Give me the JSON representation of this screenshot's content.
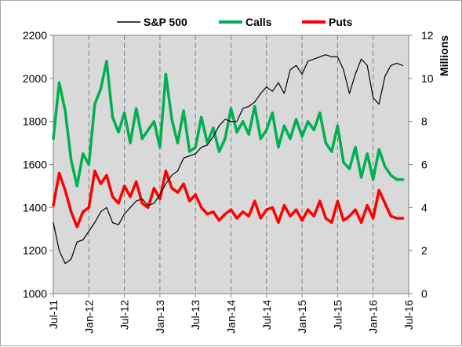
{
  "chart_data": {
    "type": "line",
    "title": "",
    "x_axis": {
      "ticks": [
        "Jul-11",
        "Jan-12",
        "Jul-12",
        "Jan-13",
        "Jul-13",
        "Jan-14",
        "Jul-14",
        "Jan-15",
        "Jul-15",
        "Jan-16",
        "Jul-16"
      ],
      "range": [
        "2011-07",
        "2016-07"
      ]
    },
    "y_left": {
      "label": "",
      "ylim": [
        1000,
        2200
      ],
      "ticks": [
        "1000",
        "1200",
        "1400",
        "1600",
        "1800",
        "2000",
        "2200"
      ]
    },
    "y_right": {
      "label": "Millions",
      "ylim": [
        0,
        12
      ],
      "ticks": [
        "0",
        "2",
        "4",
        "6",
        "8",
        "10",
        "12"
      ]
    },
    "legend": {
      "placement": "top",
      "entries": [
        "S&P 500",
        "Calls",
        "Puts"
      ]
    },
    "grid": {
      "vertical_dashed": true,
      "horizontal": false
    },
    "colors": {
      "sp500": "#000000",
      "calls": "#00b050",
      "puts": "#ff0000",
      "plot_bg": "#d9d9d9"
    },
    "x_values": [
      2011.5,
      2011.583,
      2011.667,
      2011.75,
      2011.833,
      2011.917,
      2012.0,
      2012.083,
      2012.167,
      2012.25,
      2012.333,
      2012.417,
      2012.5,
      2012.583,
      2012.667,
      2012.75,
      2012.833,
      2012.917,
      2013.0,
      2013.083,
      2013.167,
      2013.25,
      2013.333,
      2013.417,
      2013.5,
      2013.583,
      2013.667,
      2013.75,
      2013.833,
      2013.917,
      2014.0,
      2014.083,
      2014.167,
      2014.25,
      2014.333,
      2014.417,
      2014.5,
      2014.583,
      2014.667,
      2014.75,
      2014.833,
      2014.917,
      2015.0,
      2015.083,
      2015.167,
      2015.25,
      2015.333,
      2015.417,
      2015.5,
      2015.583,
      2015.667,
      2015.75,
      2015.833,
      2015.917,
      2016.0,
      2016.083,
      2016.167,
      2016.25,
      2016.333,
      2016.417
    ],
    "series": [
      {
        "name": "S&P 500",
        "axis": "left",
        "values": [
          1330,
          1200,
          1140,
          1160,
          1240,
          1250,
          1290,
          1330,
          1380,
          1400,
          1330,
          1320,
          1370,
          1400,
          1430,
          1440,
          1410,
          1420,
          1460,
          1510,
          1550,
          1570,
          1630,
          1640,
          1650,
          1680,
          1690,
          1730,
          1780,
          1810,
          1800,
          1800,
          1860,
          1870,
          1890,
          1930,
          1960,
          1940,
          1980,
          1930,
          2040,
          2060,
          2020,
          2080,
          2090,
          2100,
          2110,
          2100,
          2100,
          2040,
          1930,
          2020,
          2090,
          2060,
          1910,
          1880,
          2010,
          2060,
          2070,
          2060
        ]
      },
      {
        "name": "Calls",
        "axis": "right",
        "values": [
          7.2,
          9.8,
          8.5,
          6.2,
          5.0,
          6.5,
          6.0,
          8.8,
          9.5,
          10.8,
          8.2,
          7.5,
          8.4,
          7.0,
          8.6,
          7.2,
          7.6,
          8.0,
          6.8,
          10.2,
          8.1,
          7.0,
          8.5,
          6.6,
          6.8,
          8.2,
          7.0,
          7.7,
          6.6,
          7.2,
          8.6,
          7.5,
          8.0,
          7.4,
          8.7,
          7.2,
          7.6,
          8.4,
          6.8,
          7.8,
          7.2,
          8.1,
          7.3,
          8.0,
          7.6,
          8.4,
          7.0,
          6.6,
          7.8,
          6.1,
          5.8,
          6.8,
          5.4,
          6.5,
          5.3,
          6.7,
          5.9,
          5.5,
          5.3,
          5.3
        ]
      },
      {
        "name": "Puts",
        "axis": "right",
        "values": [
          4.1,
          5.6,
          4.8,
          3.8,
          3.1,
          3.8,
          4.0,
          5.7,
          5.1,
          5.5,
          4.5,
          4.2,
          5.0,
          4.5,
          5.2,
          4.2,
          4.0,
          4.9,
          4.4,
          5.7,
          4.9,
          4.7,
          5.1,
          4.3,
          4.6,
          4.0,
          3.7,
          3.8,
          3.4,
          3.7,
          3.9,
          3.5,
          3.8,
          3.6,
          4.3,
          3.5,
          3.9,
          4.0,
          3.3,
          4.1,
          3.6,
          3.9,
          3.4,
          3.9,
          3.6,
          4.3,
          3.5,
          3.3,
          4.3,
          3.4,
          3.6,
          3.9,
          3.3,
          4.1,
          3.5,
          4.8,
          4.2,
          3.6,
          3.5,
          3.5
        ]
      }
    ]
  }
}
